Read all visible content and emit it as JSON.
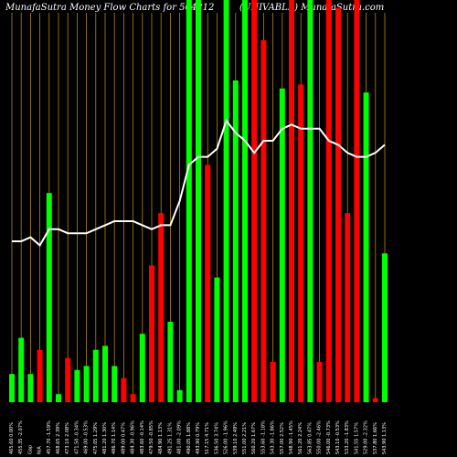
{
  "header": {
    "title_left": "MunafaSutra  Money Flow  Charts for 504212",
    "title_right": "(UNIVABLE)  MunafaSutra.com"
  },
  "chart_data": {
    "type": "bar",
    "title": "MunafaSutra  Money Flow  Charts for 504212",
    "colors": {
      "up": "#00ff00",
      "down": "#ff0000",
      "line": "#ffffff",
      "grid": "#b8860b",
      "background": "#000000"
    },
    "ylim": [
      0,
      100
    ],
    "categories": [
      "465.60 0.00%",
      "455.35 -2.07%",
      "Gap",
      "N/A",
      "457.70 -1.59%",
      "468.65 2.39%",
      "473.10 2.08%",
      "471.50 -0.34%",
      "469.00 -0.53%",
      "475.05 1.29%",
      "481.20 1.30%",
      "486.70 1.14%",
      "489.00 0.47%",
      "484.30 -0.96%",
      "483.60 -0.14%",
      "479.50 -0.85%",
      "484.90 1.13%",
      "491.25 1.31%",
      "481.00 -2.09%",
      "490.05 1.88%",
      "493.90 0.79%",
      "517.15 4.71%",
      "536.50 3.74%",
      "526.00 -1.96%",
      "539.10 2.49%",
      "551.00 2.21%",
      "560.20 1.67%",
      "553.60 -1.18%",
      "543.30 -1.86%",
      "557.00 2.52%",
      "548.90 -1.45%",
      "561.20 2.24%",
      "563.85 0.47%",
      "550.00 -2.46%",
      "546.00 -0.73%",
      "543.10 -0.53%",
      "533.20 -1.83%",
      "541.55 1.57%",
      "529.00 -2.32%",
      "537.80 1.66%",
      "543.90 1.13%"
    ],
    "series": [
      {
        "values": [
          7,
          16,
          7,
          13,
          52,
          2,
          11,
          8,
          9,
          13,
          14,
          9,
          6,
          2,
          17,
          34,
          47,
          20,
          3,
          100,
          100,
          59,
          31,
          100,
          80,
          100,
          100,
          90,
          10,
          78,
          100,
          79,
          100,
          10,
          100,
          98,
          47,
          100,
          77,
          1,
          37
        ],
        "direction": [
          "up",
          "up",
          "up",
          "down",
          "up",
          "up",
          "down",
          "up",
          "up",
          "up",
          "up",
          "up",
          "down",
          "down",
          "up",
          "down",
          "down",
          "up",
          "up",
          "up",
          "up",
          "down",
          "up",
          "up",
          "up",
          "up",
          "down",
          "down",
          "down",
          "up",
          "down",
          "down",
          "up",
          "down",
          "down",
          "down",
          "down",
          "down",
          "up",
          "down",
          "up"
        ]
      }
    ],
    "line": [
      40,
      40,
      41,
      39,
      43,
      43,
      42,
      42,
      42,
      43,
      44,
      45,
      45,
      45,
      44,
      43,
      44,
      44,
      50,
      59,
      61,
      61,
      63,
      70,
      67,
      65,
      62,
      65,
      65,
      68,
      69,
      68,
      68,
      68,
      65,
      64,
      62,
      61,
      61,
      62,
      64
    ]
  }
}
